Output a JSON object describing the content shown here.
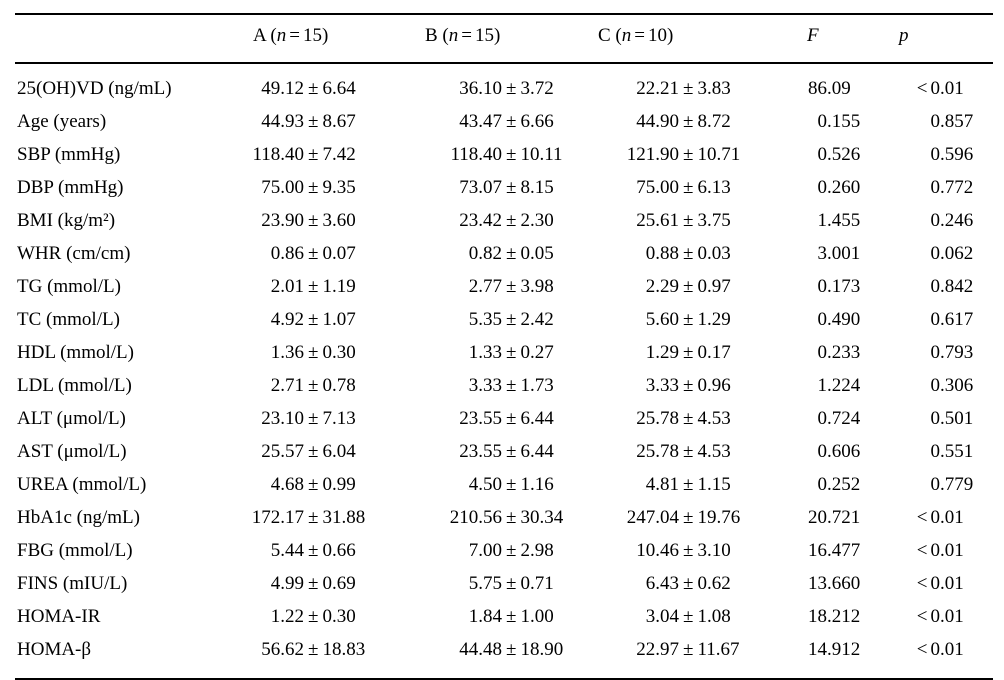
{
  "page": {
    "background_color": "#ffffff",
    "text_color": "#000000",
    "rule_color": "#000000"
  },
  "table": {
    "pm_symbol": "±",
    "header": {
      "stub": "",
      "groups": [
        {
          "name": "A",
          "n_label": "n",
          "eq": "=",
          "n_value": "15"
        },
        {
          "name": "B",
          "n_label": "n",
          "eq": "=",
          "n_value": "15"
        },
        {
          "name": "C",
          "n_label": "n",
          "eq": "=",
          "n_value": "10"
        }
      ],
      "f_label": "F",
      "p_label": "p"
    },
    "rows": [
      {
        "label": "25(OH)VD (ng/mL)",
        "a_mean": "49.12",
        "a_sd": "6.64",
        "b_mean": "36.10",
        "b_sd": "3.72",
        "c_mean": "22.21",
        "c_sd": "3.83",
        "f": "86.09",
        "p": "<0.01"
      },
      {
        "label": "Age (years)",
        "a_mean": "44.93",
        "a_sd": "8.67",
        "b_mean": "43.47",
        "b_sd": "6.66",
        "c_mean": "44.90",
        "c_sd": "8.72",
        "f": "0.155",
        "p": "0.857"
      },
      {
        "label": "SBP (mmHg)",
        "a_mean": "118.40",
        "a_sd": "7.42",
        "b_mean": "118.40",
        "b_sd": "10.11",
        "c_mean": "121.90",
        "c_sd": "10.71",
        "f": "0.526",
        "p": "0.596"
      },
      {
        "label": "DBP (mmHg)",
        "a_mean": "75.00",
        "a_sd": "9.35",
        "b_mean": "73.07",
        "b_sd": "8.15",
        "c_mean": "75.00",
        "c_sd": "6.13",
        "f": "0.260",
        "p": "0.772"
      },
      {
        "label": "BMI (kg/m²)",
        "a_mean": "23.90",
        "a_sd": "3.60",
        "b_mean": "23.42",
        "b_sd": "2.30",
        "c_mean": "25.61",
        "c_sd": "3.75",
        "f": "1.455",
        "p": "0.246"
      },
      {
        "label": "WHR (cm/cm)",
        "a_mean": "0.86",
        "a_sd": "0.07",
        "b_mean": "0.82",
        "b_sd": "0.05",
        "c_mean": "0.88",
        "c_sd": "0.03",
        "f": "3.001",
        "p": "0.062"
      },
      {
        "label": "TG (mmol/L)",
        "a_mean": "2.01",
        "a_sd": "1.19",
        "b_mean": "2.77",
        "b_sd": "3.98",
        "c_mean": "2.29",
        "c_sd": "0.97",
        "f": "0.173",
        "p": "0.842"
      },
      {
        "label": "TC (mmol/L)",
        "a_mean": "4.92",
        "a_sd": "1.07",
        "b_mean": "5.35",
        "b_sd": "2.42",
        "c_mean": "5.60",
        "c_sd": "1.29",
        "f": "0.490",
        "p": "0.617"
      },
      {
        "label": "HDL (mmol/L)",
        "a_mean": "1.36",
        "a_sd": "0.30",
        "b_mean": "1.33",
        "b_sd": "0.27",
        "c_mean": "1.29",
        "c_sd": "0.17",
        "f": "0.233",
        "p": "0.793"
      },
      {
        "label": "LDL (mmol/L)",
        "a_mean": "2.71",
        "a_sd": "0.78",
        "b_mean": "3.33",
        "b_sd": "1.73",
        "c_mean": "3.33",
        "c_sd": "0.96",
        "f": "1.224",
        "p": "0.306"
      },
      {
        "label": "ALT (μmol/L)",
        "a_mean": "23.10",
        "a_sd": "7.13",
        "b_mean": "23.55",
        "b_sd": "6.44",
        "c_mean": "25.78",
        "c_sd": "4.53",
        "f": "0.724",
        "p": "0.501"
      },
      {
        "label": "AST (μmol/L)",
        "a_mean": "25.57",
        "a_sd": "6.04",
        "b_mean": "23.55",
        "b_sd": "6.44",
        "c_mean": "25.78",
        "c_sd": "4.53",
        "f": "0.606",
        "p": "0.551"
      },
      {
        "label": "UREA (mmol/L)",
        "a_mean": "4.68",
        "a_sd": "0.99",
        "b_mean": "4.50",
        "b_sd": "1.16",
        "c_mean": "4.81",
        "c_sd": "1.15",
        "f": "0.252",
        "p": "0.779"
      },
      {
        "label": "HbA1c (ng/mL)",
        "a_mean": "172.17",
        "a_sd": "31.88",
        "b_mean": "210.56",
        "b_sd": "30.34",
        "c_mean": "247.04",
        "c_sd": "19.76",
        "f": "20.721",
        "p": "<0.01"
      },
      {
        "label": "FBG (mmol/L)",
        "a_mean": "5.44",
        "a_sd": "0.66",
        "b_mean": "7.00",
        "b_sd": "2.98",
        "c_mean": "10.46",
        "c_sd": "3.10",
        "f": "16.477",
        "p": "<0.01"
      },
      {
        "label": "FINS (mIU/L)",
        "a_mean": "4.99",
        "a_sd": "0.69",
        "b_mean": "5.75",
        "b_sd": "0.71",
        "c_mean": "6.43",
        "c_sd": "0.62",
        "f": "13.660",
        "p": "<0.01"
      },
      {
        "label": "HOMA-IR",
        "a_mean": "1.22",
        "a_sd": "0.30",
        "b_mean": "1.84",
        "b_sd": "1.00",
        "c_mean": "3.04",
        "c_sd": "1.08",
        "f": "18.212",
        "p": "<0.01"
      },
      {
        "label": "HOMA-β",
        "a_mean": "56.62",
        "a_sd": "18.83",
        "b_mean": "44.48",
        "b_sd": "18.90",
        "c_mean": "22.97",
        "c_sd": "11.67",
        "f": "14.912",
        "p": "<0.01"
      }
    ]
  }
}
